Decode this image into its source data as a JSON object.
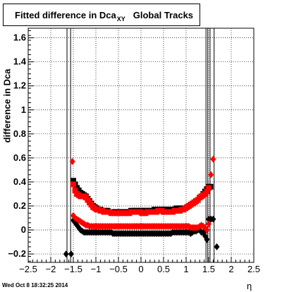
{
  "header": {
    "title_main": "Fitted difference in Dca",
    "title_sub": "XY",
    "title_tail": "Global Tracks"
  },
  "footer": {
    "timestamp": "Wed Oct  8 18:32:25 2014"
  },
  "chart_data": {
    "type": "scatter",
    "title": "Fitted difference in Dca_XY  Global Tracks",
    "xlabel": "η",
    "ylabel": "difference in Dca",
    "xlim": [
      -2.5,
      2.5
    ],
    "ylim": [
      -0.27,
      1.68
    ],
    "grid": true,
    "xticks": [
      "−2.5",
      "−2",
      "−1.5",
      "−1",
      "−0.5",
      "0",
      "0.5",
      "1",
      "1.5",
      "2",
      "2.5"
    ],
    "yticks": [
      "−0.2",
      "0",
      "0.2",
      "0.4",
      "0.6",
      "0.8",
      "1",
      "1.2",
      "1.4",
      "1.6"
    ],
    "vertical_lines_x": [
      -1.64,
      -1.56,
      1.44,
      1.48,
      1.53,
      1.62
    ],
    "series": [
      {
        "color": "#000000",
        "marker": "square",
        "x": [
          -1.5,
          -1.46,
          -1.42,
          -1.38,
          -1.34,
          -1.3,
          -1.26,
          -1.22,
          -1.18,
          -1.14,
          -1.1,
          -1.06,
          -1.02,
          -0.98,
          -0.94,
          -0.9,
          -0.86,
          -0.82,
          -0.78,
          -0.74,
          -0.7,
          -0.66,
          -0.62,
          -0.58,
          -0.54,
          -0.5,
          -0.46,
          -0.42,
          -0.38,
          -0.34,
          -0.3,
          -0.26,
          -0.22,
          -0.18,
          -0.14,
          -0.1,
          -0.06,
          -0.02,
          0.02,
          0.06,
          0.1,
          0.14,
          0.18,
          0.22,
          0.26,
          0.3,
          0.34,
          0.38,
          0.42,
          0.46,
          0.5,
          0.54,
          0.58,
          0.62,
          0.66,
          0.7,
          0.74,
          0.78,
          0.82,
          0.86,
          0.9,
          0.94,
          0.98,
          1.02,
          1.06,
          1.1,
          1.14,
          1.18,
          1.22,
          1.26,
          1.3,
          1.34,
          1.38,
          1.42,
          1.46,
          1.5,
          1.54
        ],
        "y": [
          0.41,
          0.38,
          0.35,
          0.33,
          0.31,
          0.3,
          0.29,
          0.28,
          0.26,
          0.24,
          0.22,
          0.2,
          0.19,
          0.18,
          0.17,
          0.17,
          0.16,
          0.16,
          0.16,
          0.16,
          0.15,
          0.15,
          0.15,
          0.15,
          0.15,
          0.15,
          0.15,
          0.15,
          0.15,
          0.15,
          0.15,
          0.15,
          0.16,
          0.16,
          0.16,
          0.16,
          0.16,
          0.16,
          0.16,
          0.16,
          0.16,
          0.16,
          0.16,
          0.16,
          0.16,
          0.17,
          0.17,
          0.17,
          0.17,
          0.17,
          0.17,
          0.17,
          0.17,
          0.17,
          0.17,
          0.17,
          0.17,
          0.18,
          0.18,
          0.18,
          0.18,
          0.18,
          0.18,
          0.19,
          0.2,
          0.21,
          0.22,
          0.23,
          0.24,
          0.25,
          0.27,
          0.28,
          0.3,
          0.32,
          0.34,
          0.36,
          0.36
        ]
      },
      {
        "color": "#ff0000",
        "marker": "square",
        "x": [
          -1.5,
          -1.46,
          -1.42,
          -1.38,
          -1.34,
          -1.3,
          -1.26,
          -1.22,
          -1.18,
          -1.14,
          -1.1,
          -1.06,
          -1.02,
          -0.98,
          -0.94,
          -0.9,
          -0.86,
          -0.82,
          -0.78,
          -0.74,
          -0.7,
          -0.66,
          -0.62,
          -0.58,
          -0.54,
          -0.5,
          -0.46,
          -0.42,
          -0.38,
          -0.34,
          -0.3,
          -0.26,
          -0.22,
          -0.18,
          -0.14,
          -0.1,
          -0.06,
          -0.02,
          0.02,
          0.06,
          0.1,
          0.14,
          0.18,
          0.22,
          0.26,
          0.3,
          0.34,
          0.38,
          0.42,
          0.46,
          0.5,
          0.54,
          0.58,
          0.62,
          0.66,
          0.7,
          0.74,
          0.78,
          0.82,
          0.86,
          0.9,
          0.94,
          0.98,
          1.02,
          1.06,
          1.1,
          1.14,
          1.18,
          1.22,
          1.26,
          1.3,
          1.34,
          1.38,
          1.42,
          1.46,
          1.5
        ],
        "y": [
          0.38,
          0.33,
          0.3,
          0.29,
          0.28,
          0.28,
          0.28,
          0.27,
          0.25,
          0.23,
          0.21,
          0.19,
          0.18,
          0.17,
          0.17,
          0.16,
          0.16,
          0.15,
          0.15,
          0.15,
          0.15,
          0.14,
          0.14,
          0.14,
          0.14,
          0.14,
          0.14,
          0.14,
          0.14,
          0.14,
          0.14,
          0.14,
          0.15,
          0.15,
          0.15,
          0.15,
          0.15,
          0.15,
          0.14,
          0.14,
          0.14,
          0.15,
          0.15,
          0.15,
          0.15,
          0.15,
          0.15,
          0.16,
          0.16,
          0.16,
          0.15,
          0.15,
          0.15,
          0.15,
          0.15,
          0.15,
          0.16,
          0.16,
          0.16,
          0.16,
          0.17,
          0.17,
          0.18,
          0.19,
          0.2,
          0.21,
          0.22,
          0.23,
          0.24,
          0.25,
          0.27,
          0.28,
          0.29,
          0.3,
          0.32,
          0.35
        ]
      },
      {
        "color": "#000000",
        "marker": "diamond",
        "x": [
          -1.66,
          -1.55,
          -1.5,
          -1.46,
          -1.42,
          -1.38,
          -1.34,
          -1.3,
          -1.26,
          -1.22,
          -1.18,
          -1.14,
          -1.1,
          -1.06,
          -1.02,
          -0.98,
          -0.94,
          -0.9,
          -0.86,
          -0.82,
          -0.78,
          -0.74,
          -0.7,
          -0.66,
          -0.62,
          -0.58,
          -0.54,
          -0.5,
          -0.46,
          -0.42,
          -0.38,
          -0.34,
          -0.3,
          -0.26,
          -0.22,
          -0.18,
          -0.14,
          -0.1,
          -0.06,
          -0.02,
          0.02,
          0.06,
          0.1,
          0.14,
          0.18,
          0.22,
          0.26,
          0.3,
          0.34,
          0.38,
          0.42,
          0.46,
          0.5,
          0.54,
          0.58,
          0.62,
          0.66,
          0.7,
          0.74,
          0.78,
          0.82,
          0.86,
          0.9,
          0.94,
          0.98,
          1.02,
          1.06,
          1.1,
          1.14,
          1.18,
          1.22,
          1.26,
          1.3,
          1.34,
          1.38,
          1.42,
          1.46,
          1.5,
          1.55,
          1.6,
          1.68
        ],
        "y": [
          -0.2,
          -0.2,
          0.08,
          0.06,
          0.04,
          0.02,
          0.0,
          -0.01,
          -0.02,
          -0.02,
          -0.02,
          -0.02,
          -0.02,
          -0.02,
          -0.02,
          -0.02,
          -0.02,
          -0.02,
          -0.02,
          -0.02,
          -0.02,
          -0.02,
          -0.02,
          -0.02,
          -0.03,
          -0.03,
          -0.03,
          -0.03,
          -0.03,
          -0.03,
          -0.03,
          -0.03,
          -0.03,
          -0.03,
          -0.03,
          -0.03,
          -0.03,
          -0.03,
          -0.03,
          -0.03,
          -0.03,
          -0.03,
          -0.03,
          -0.03,
          -0.03,
          -0.03,
          -0.03,
          -0.03,
          -0.03,
          -0.03,
          -0.03,
          -0.03,
          -0.03,
          -0.03,
          -0.03,
          -0.03,
          -0.03,
          -0.02,
          -0.02,
          -0.02,
          -0.02,
          -0.02,
          -0.02,
          -0.02,
          -0.02,
          -0.02,
          -0.02,
          -0.03,
          -0.02,
          -0.01,
          -0.01,
          0.0,
          0.0,
          -0.02,
          -0.02,
          -0.05,
          -0.08,
          0.09,
          0.09,
          0.09,
          -0.14
        ]
      },
      {
        "color": "#ff0000",
        "marker": "diamond",
        "x": [
          -1.52,
          -1.5,
          -1.46,
          -1.42,
          -1.38,
          -1.34,
          -1.3,
          -1.26,
          -1.22,
          -1.18,
          -1.14,
          -1.1,
          -1.06,
          -1.02,
          -0.98,
          -0.94,
          -0.9,
          -0.86,
          -0.82,
          -0.78,
          -0.74,
          -0.7,
          -0.66,
          -0.62,
          -0.58,
          -0.54,
          -0.5,
          -0.46,
          -0.42,
          -0.38,
          -0.34,
          -0.3,
          -0.26,
          -0.22,
          -0.18,
          -0.14,
          -0.1,
          -0.06,
          -0.02,
          0.02,
          0.06,
          0.1,
          0.14,
          0.18,
          0.22,
          0.26,
          0.3,
          0.34,
          0.38,
          0.42,
          0.46,
          0.5,
          0.54,
          0.58,
          0.62,
          0.66,
          0.7,
          0.74,
          0.78,
          0.82,
          0.86,
          0.9,
          0.94,
          0.98,
          1.02,
          1.06,
          1.1,
          1.14,
          1.18,
          1.22,
          1.26,
          1.3,
          1.34,
          1.38,
          1.42,
          1.46,
          1.5,
          1.55,
          1.6
        ],
        "y": [
          0.57,
          0.12,
          0.1,
          0.09,
          0.08,
          0.07,
          0.06,
          0.05,
          0.04,
          0.04,
          0.03,
          0.03,
          0.03,
          0.03,
          0.03,
          0.03,
          0.03,
          0.03,
          0.03,
          0.03,
          0.03,
          0.03,
          0.03,
          0.03,
          0.03,
          0.03,
          0.03,
          0.03,
          0.03,
          0.03,
          0.03,
          0.03,
          0.03,
          0.03,
          0.03,
          0.03,
          0.03,
          0.03,
          0.03,
          0.03,
          0.03,
          0.03,
          0.03,
          0.03,
          0.03,
          0.03,
          0.03,
          0.03,
          0.03,
          0.03,
          0.03,
          0.03,
          0.03,
          0.03,
          0.03,
          0.03,
          0.03,
          0.03,
          0.03,
          0.03,
          0.03,
          0.03,
          0.03,
          0.03,
          0.03,
          0.03,
          0.02,
          0.02,
          0.02,
          0.02,
          0.02,
          0.03,
          0.04,
          0.03,
          0.02,
          0.0,
          0.05,
          0.46,
          0.59
        ]
      }
    ]
  }
}
